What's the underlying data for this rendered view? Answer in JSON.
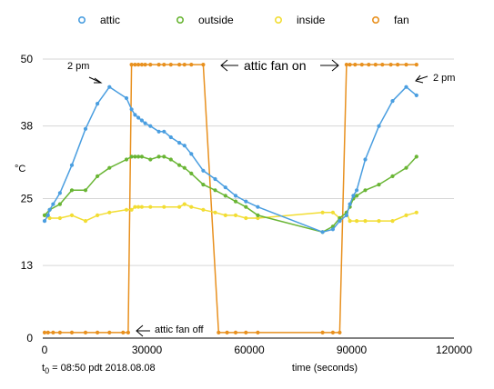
{
  "chart_data": {
    "type": "line",
    "ylabel": "°C",
    "xlabel": "time (seconds)",
    "xlim": [
      0,
      120000
    ],
    "ylim": [
      0,
      50
    ],
    "x_ticks": [
      0,
      30000,
      60000,
      90000,
      120000
    ],
    "y_ticks": [
      0,
      13,
      25,
      38,
      50
    ],
    "grid": "horizontal",
    "legend_position": "top",
    "footnote": {
      "prefix": "t",
      "sub": "0",
      "text": " = 08:50 pdt 2018.08.08"
    },
    "annotations": [
      {
        "text": "2 pm"
      },
      {
        "text": "attic fan on"
      },
      {
        "text": "2 pm"
      },
      {
        "text": "attic fan off"
      }
    ],
    "series": [
      {
        "name": "attic",
        "color": "#4a9ee0",
        "points": [
          [
            0,
            21
          ],
          [
            1000,
            22
          ],
          [
            1500,
            23
          ],
          [
            2500,
            24
          ],
          [
            4500,
            26
          ],
          [
            8000,
            31
          ],
          [
            12000,
            37.5
          ],
          [
            15500,
            42
          ],
          [
            19000,
            45
          ],
          [
            24000,
            43
          ],
          [
            25500,
            41
          ],
          [
            26500,
            40
          ],
          [
            27500,
            39.5
          ],
          [
            28500,
            39
          ],
          [
            29500,
            38.5
          ],
          [
            31000,
            38
          ],
          [
            33500,
            37
          ],
          [
            35000,
            37
          ],
          [
            37000,
            36
          ],
          [
            39500,
            35
          ],
          [
            41000,
            34.5
          ],
          [
            43000,
            33
          ],
          [
            46500,
            30
          ],
          [
            50000,
            28.5
          ],
          [
            53000,
            27
          ],
          [
            56000,
            25.5
          ],
          [
            59000,
            24.5
          ],
          [
            62500,
            23.5
          ],
          [
            81500,
            19
          ],
          [
            84500,
            19.5
          ],
          [
            86500,
            21
          ],
          [
            88500,
            22
          ],
          [
            89500,
            24
          ],
          [
            90500,
            25.5
          ],
          [
            91500,
            26.5
          ],
          [
            94000,
            32
          ],
          [
            98000,
            38
          ],
          [
            102000,
            42.5
          ],
          [
            106000,
            45
          ],
          [
            109000,
            43.5
          ]
        ]
      },
      {
        "name": "outside",
        "color": "#69b534",
        "points": [
          [
            0,
            22
          ],
          [
            1500,
            23
          ],
          [
            4500,
            24
          ],
          [
            8000,
            26.5
          ],
          [
            12000,
            26.5
          ],
          [
            15500,
            29
          ],
          [
            19000,
            30.5
          ],
          [
            24000,
            32
          ],
          [
            25500,
            32.5
          ],
          [
            26500,
            32.5
          ],
          [
            27500,
            32.5
          ],
          [
            28500,
            32.5
          ],
          [
            31000,
            32
          ],
          [
            33500,
            32.5
          ],
          [
            35000,
            32.5
          ],
          [
            37000,
            32
          ],
          [
            39500,
            31
          ],
          [
            41000,
            30.5
          ],
          [
            43000,
            29.5
          ],
          [
            46500,
            27.5
          ],
          [
            50000,
            26.5
          ],
          [
            53000,
            25.5
          ],
          [
            56000,
            24.5
          ],
          [
            59000,
            23.5
          ],
          [
            62500,
            22
          ],
          [
            81500,
            19
          ],
          [
            84500,
            20
          ],
          [
            86500,
            21.5
          ],
          [
            88500,
            22.5
          ],
          [
            89500,
            23.5
          ],
          [
            90500,
            25
          ],
          [
            91500,
            25.5
          ],
          [
            94000,
            26.5
          ],
          [
            98000,
            27.5
          ],
          [
            102000,
            29
          ],
          [
            106000,
            30.5
          ],
          [
            109000,
            32.5
          ]
        ]
      },
      {
        "name": "inside",
        "color": "#f2dd33",
        "points": [
          [
            0,
            22
          ],
          [
            1500,
            21.5
          ],
          [
            4500,
            21.5
          ],
          [
            8000,
            22
          ],
          [
            12000,
            21
          ],
          [
            15500,
            22
          ],
          [
            19000,
            22.5
          ],
          [
            24000,
            23
          ],
          [
            25500,
            23
          ],
          [
            26500,
            23.5
          ],
          [
            27500,
            23.5
          ],
          [
            28500,
            23.5
          ],
          [
            31000,
            23.5
          ],
          [
            35000,
            23.5
          ],
          [
            39500,
            23.5
          ],
          [
            41000,
            24
          ],
          [
            43000,
            23.5
          ],
          [
            46500,
            23
          ],
          [
            50000,
            22.5
          ],
          [
            53000,
            22
          ],
          [
            56000,
            22
          ],
          [
            59000,
            21.5
          ],
          [
            62500,
            21.5
          ],
          [
            81500,
            22.5
          ],
          [
            84500,
            22.5
          ],
          [
            86500,
            21.5
          ],
          [
            88500,
            22.5
          ],
          [
            89500,
            21
          ],
          [
            91500,
            21
          ],
          [
            94000,
            21
          ],
          [
            98000,
            21
          ],
          [
            102000,
            21
          ],
          [
            106000,
            22
          ],
          [
            109000,
            22.5
          ]
        ]
      },
      {
        "name": "fan",
        "color": "#e8901e",
        "points": [
          [
            0,
            1
          ],
          [
            1000,
            1
          ],
          [
            2500,
            1
          ],
          [
            4500,
            1
          ],
          [
            8000,
            1
          ],
          [
            12000,
            1
          ],
          [
            15500,
            1
          ],
          [
            19000,
            1
          ],
          [
            23000,
            1
          ],
          [
            24500,
            1
          ],
          [
            25500,
            49
          ],
          [
            26500,
            49
          ],
          [
            27500,
            49
          ],
          [
            28500,
            49
          ],
          [
            29500,
            49
          ],
          [
            31000,
            49
          ],
          [
            33500,
            49
          ],
          [
            35000,
            49
          ],
          [
            37000,
            49
          ],
          [
            39500,
            49
          ],
          [
            41000,
            49
          ],
          [
            43000,
            49
          ],
          [
            46500,
            49
          ],
          [
            51000,
            1
          ],
          [
            53500,
            1
          ],
          [
            56000,
            1
          ],
          [
            59000,
            1
          ],
          [
            62500,
            1
          ],
          [
            81500,
            1
          ],
          [
            84500,
            1
          ],
          [
            86500,
            1
          ],
          [
            88500,
            49
          ],
          [
            89500,
            49
          ],
          [
            91000,
            49
          ],
          [
            93000,
            49
          ],
          [
            95000,
            49
          ],
          [
            97000,
            49
          ],
          [
            99000,
            49
          ],
          [
            101500,
            49
          ],
          [
            103500,
            49
          ],
          [
            106000,
            49
          ],
          [
            109000,
            49
          ]
        ]
      }
    ]
  }
}
